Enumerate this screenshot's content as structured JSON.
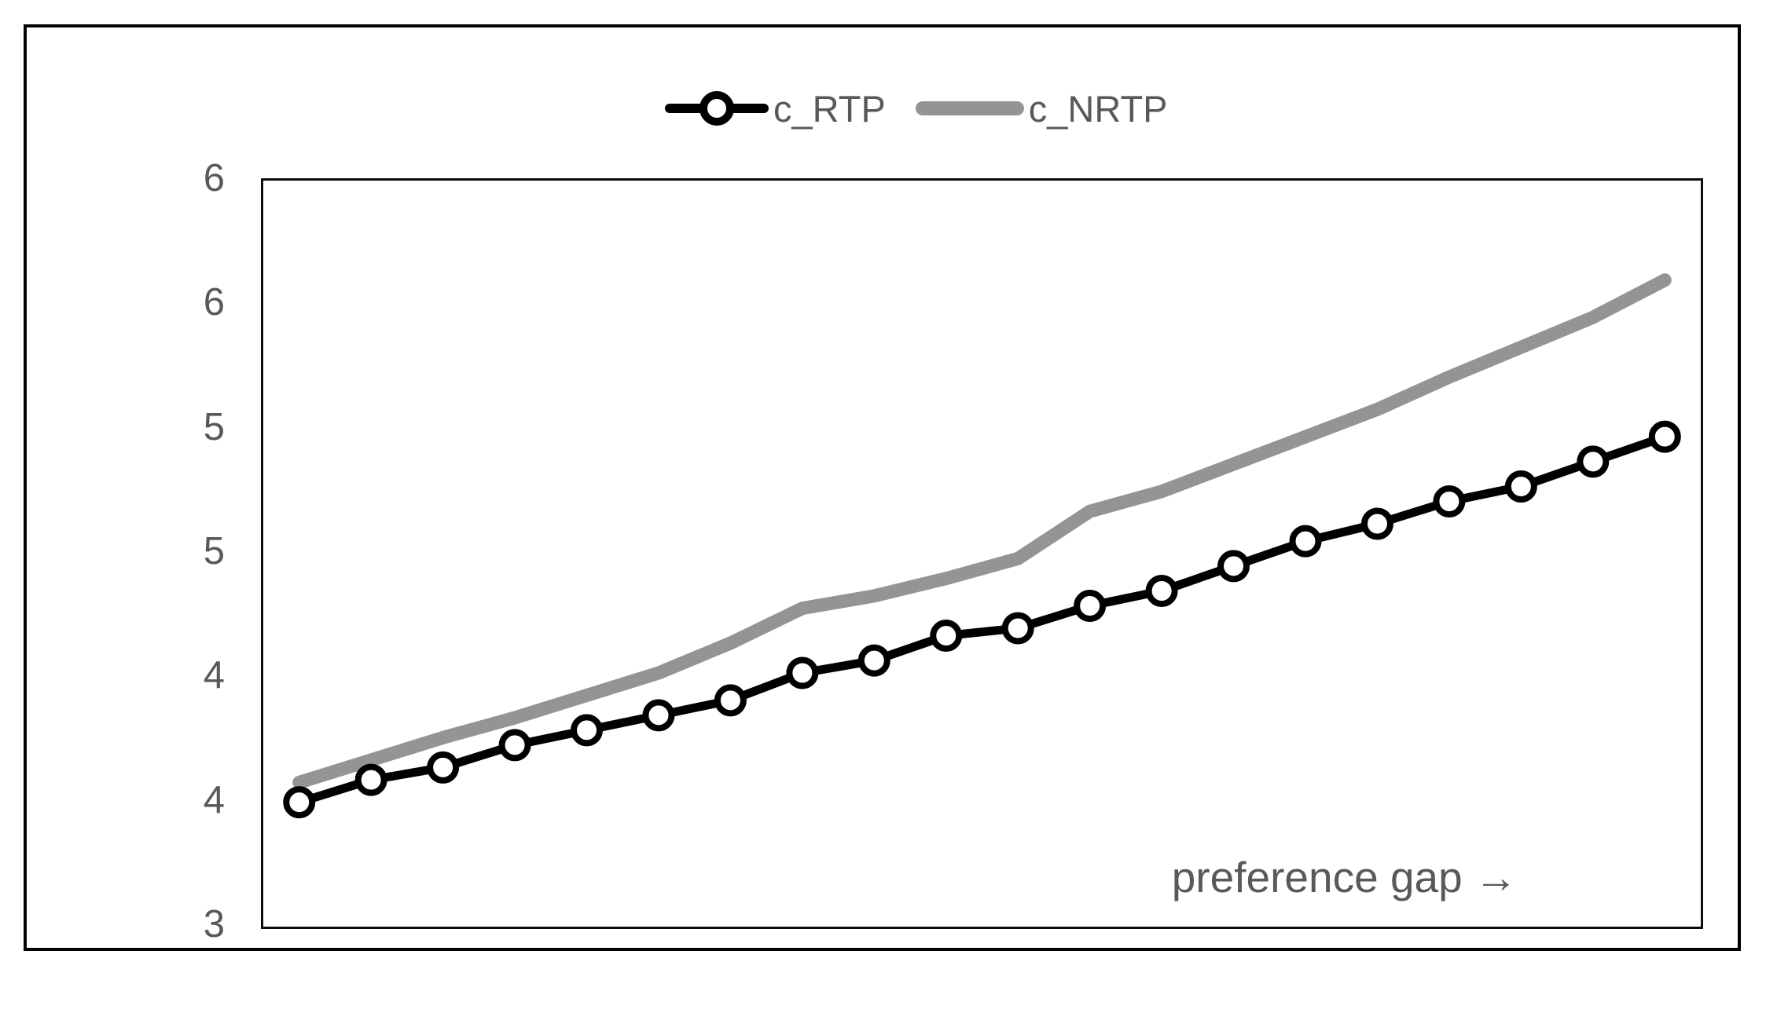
{
  "figure": {
    "background": "#ffffff",
    "outer_border_color": "#000000",
    "plot_border_color": "#0d0d0d"
  },
  "legend": {
    "position": "top-center",
    "items": [
      {
        "label": "c_RTP",
        "swatch": "black-line-with-circle-marker"
      },
      {
        "label": "c_NRTP",
        "swatch": "thick-gray-line"
      }
    ]
  },
  "annotation": {
    "text": "preference gap →"
  },
  "colors": {
    "rtp_series": "#000000",
    "nrtp_series": "#949494",
    "axis_text": "#595959",
    "marker_fill": "#ffffff"
  },
  "chart_data": {
    "type": "line",
    "x": [
      1,
      2,
      3,
      4,
      5,
      6,
      7,
      8,
      9,
      10,
      11,
      12,
      13,
      14,
      15,
      16,
      17,
      18,
      19,
      20
    ],
    "series": [
      {
        "name": "c_RTP",
        "color": "#000000",
        "marker": "circle",
        "values": [
          3.5,
          3.59,
          3.64,
          3.73,
          3.79,
          3.85,
          3.91,
          4.02,
          4.07,
          4.17,
          4.2,
          4.29,
          4.35,
          4.45,
          4.55,
          4.62,
          4.71,
          4.77,
          4.87,
          4.97
        ]
      },
      {
        "name": "c_NRTP",
        "color": "#949494",
        "marker": "none",
        "values": [
          3.58,
          3.67,
          3.76,
          3.84,
          3.93,
          4.02,
          4.14,
          4.28,
          4.33,
          4.4,
          4.48,
          4.67,
          4.75,
          4.86,
          4.97,
          5.08,
          5.21,
          5.33,
          5.45,
          5.6
        ]
      }
    ],
    "ylim": [
      3,
      6
    ],
    "yticks": [
      {
        "value": 3.0,
        "label": "3"
      },
      {
        "value": 3.5,
        "label": "4"
      },
      {
        "value": 4.0,
        "label": "4"
      },
      {
        "value": 4.5,
        "label": "5"
      },
      {
        "value": 5.0,
        "label": "5"
      },
      {
        "value": 5.5,
        "label": "6"
      },
      {
        "value": 6.0,
        "label": "6"
      }
    ],
    "xticks": [],
    "xlabel": "",
    "ylabel": "",
    "title": "",
    "grid": false,
    "legend_position": "top",
    "annotation": "preference gap →"
  }
}
